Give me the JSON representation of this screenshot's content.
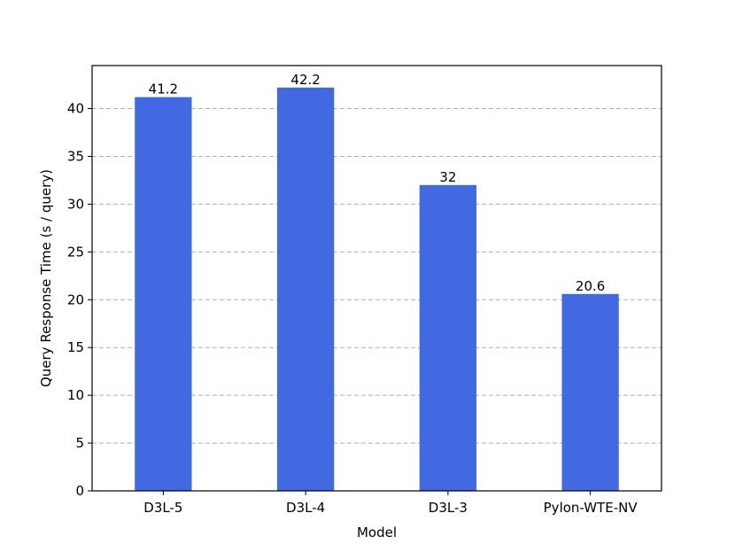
{
  "chart_data": {
    "type": "bar",
    "categories": [
      "D3L-5",
      "D3L-4",
      "D3L-3",
      "Pylon-WTE-NV"
    ],
    "values": [
      41.2,
      42.2,
      32,
      20.6
    ],
    "data_labels": [
      "41.2",
      "42.2",
      "32",
      "20.6"
    ],
    "xlabel": "Model",
    "ylabel": "Query Response Time (s / query)",
    "ylim": [
      0,
      44.5
    ],
    "yticks": [
      0,
      5,
      10,
      15,
      20,
      25,
      30,
      35,
      40
    ],
    "grid": "horizontal-dashed",
    "bar_color": "#4169e1"
  }
}
